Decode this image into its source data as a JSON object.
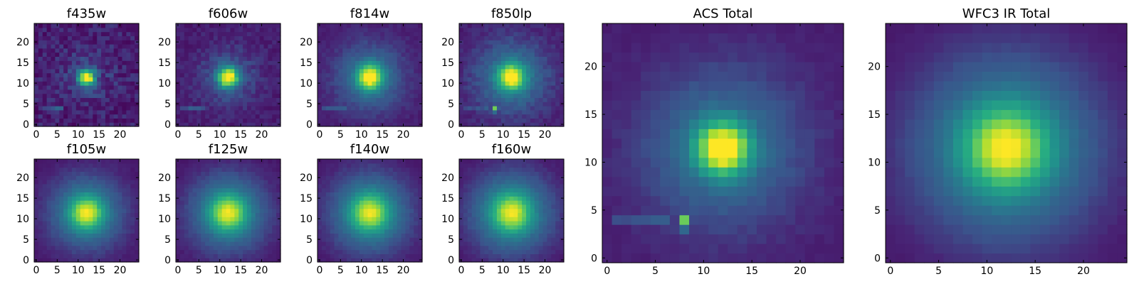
{
  "figure": {
    "background": "#ffffff"
  },
  "chart_data": [
    {
      "type": "heatmap",
      "title": "f435w",
      "size": 25,
      "xticks": [
        "0",
        "5",
        "10",
        "15",
        "20"
      ],
      "yticks": [
        "0",
        "5",
        "10",
        "15",
        "20"
      ],
      "colormap": "viridis",
      "source": {
        "cx": 12.0,
        "cy": 11.5,
        "core": 0.95,
        "core_sigma": 1.3,
        "halo": 0.12,
        "halo_sigma": 4.5,
        "bg": 0.1,
        "noise": 0.09,
        "streak": 0.15
      }
    },
    {
      "type": "heatmap",
      "title": "f606w",
      "size": 25,
      "xticks": [
        "0",
        "5",
        "10",
        "15",
        "20"
      ],
      "yticks": [
        "0",
        "5",
        "10",
        "15",
        "20"
      ],
      "colormap": "viridis",
      "source": {
        "cx": 12.0,
        "cy": 11.5,
        "core": 0.85,
        "core_sigma": 1.6,
        "halo": 0.2,
        "halo_sigma": 5.0,
        "bg": 0.1,
        "noise": 0.05,
        "streak": 0.15
      }
    },
    {
      "type": "heatmap",
      "title": "f814w",
      "size": 25,
      "xticks": [
        "0",
        "5",
        "10",
        "15",
        "20"
      ],
      "yticks": [
        "0",
        "5",
        "10",
        "15",
        "20"
      ],
      "colormap": "viridis",
      "source": {
        "cx": 12.0,
        "cy": 11.5,
        "core": 0.75,
        "core_sigma": 2.0,
        "halo": 0.3,
        "halo_sigma": 6.0,
        "bg": 0.1,
        "noise": 0.03,
        "streak": 0.12
      }
    },
    {
      "type": "heatmap",
      "title": "f850lp",
      "size": 25,
      "xticks": [
        "0",
        "5",
        "10",
        "15",
        "20"
      ],
      "yticks": [
        "0",
        "5",
        "10",
        "15",
        "20"
      ],
      "colormap": "viridis",
      "source": {
        "cx": 12.0,
        "cy": 11.5,
        "core": 0.7,
        "core_sigma": 2.1,
        "halo": 0.32,
        "halo_sigma": 6.5,
        "bg": 0.1,
        "noise": 0.04,
        "streak": 0.08,
        "hotpixel": [
          8,
          4
        ]
      }
    },
    {
      "type": "heatmap",
      "title": "f105w",
      "size": 25,
      "xticks": [
        "0",
        "5",
        "10",
        "15",
        "20"
      ],
      "yticks": [
        "0",
        "5",
        "10",
        "15",
        "20"
      ],
      "colormap": "viridis",
      "source": {
        "cx": 12.0,
        "cy": 11.5,
        "core": 0.55,
        "core_sigma": 2.6,
        "halo": 0.4,
        "halo_sigma": 7.0,
        "bg": 0.06,
        "noise": 0.02,
        "streak": 0
      }
    },
    {
      "type": "heatmap",
      "title": "f125w",
      "size": 25,
      "xticks": [
        "0",
        "5",
        "10",
        "15",
        "20"
      ],
      "yticks": [
        "0",
        "5",
        "10",
        "15",
        "20"
      ],
      "colormap": "viridis",
      "source": {
        "cx": 12.0,
        "cy": 11.5,
        "core": 0.52,
        "core_sigma": 2.8,
        "halo": 0.42,
        "halo_sigma": 7.2,
        "bg": 0.06,
        "noise": 0.02,
        "streak": 0
      }
    },
    {
      "type": "heatmap",
      "title": "f140w",
      "size": 25,
      "xticks": [
        "0",
        "5",
        "10",
        "15",
        "20"
      ],
      "yticks": [
        "0",
        "5",
        "10",
        "15",
        "20"
      ],
      "colormap": "viridis",
      "source": {
        "cx": 12.0,
        "cy": 11.5,
        "core": 0.5,
        "core_sigma": 2.9,
        "halo": 0.43,
        "halo_sigma": 7.4,
        "bg": 0.06,
        "noise": 0.02,
        "streak": 0
      }
    },
    {
      "type": "heatmap",
      "title": "f160w",
      "size": 25,
      "xticks": [
        "0",
        "5",
        "10",
        "15",
        "20"
      ],
      "yticks": [
        "0",
        "5",
        "10",
        "15",
        "20"
      ],
      "colormap": "viridis",
      "source": {
        "cx": 12.0,
        "cy": 11.5,
        "core": 0.5,
        "core_sigma": 3.0,
        "halo": 0.44,
        "halo_sigma": 7.6,
        "bg": 0.06,
        "noise": 0.02,
        "streak": 0
      }
    },
    {
      "type": "heatmap",
      "title": "ACS Total",
      "size": 25,
      "xticks": [
        "0",
        "5",
        "10",
        "15",
        "20"
      ],
      "yticks": [
        "0",
        "5",
        "10",
        "15",
        "20"
      ],
      "colormap": "viridis",
      "source": {
        "cx": 12.0,
        "cy": 11.5,
        "core": 0.78,
        "core_sigma": 1.8,
        "halo": 0.3,
        "halo_sigma": 6.0,
        "bg": 0.1,
        "noise": 0.02,
        "streak": 0.12,
        "hotpixel": [
          8,
          4
        ]
      }
    },
    {
      "type": "heatmap",
      "title": "WFC3 IR Total",
      "size": 25,
      "xticks": [
        "0",
        "5",
        "10",
        "15",
        "20"
      ],
      "yticks": [
        "0",
        "5",
        "10",
        "15",
        "20"
      ],
      "colormap": "viridis",
      "source": {
        "cx": 12.0,
        "cy": 11.5,
        "core": 0.55,
        "core_sigma": 2.8,
        "halo": 0.43,
        "halo_sigma": 7.4,
        "bg": 0.06,
        "noise": 0.01,
        "streak": 0
      }
    }
  ]
}
